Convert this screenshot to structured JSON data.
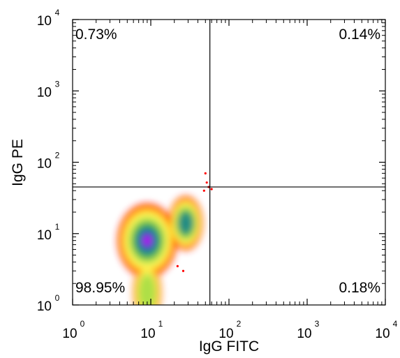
{
  "chart_data": {
    "type": "scatter",
    "subtype": "flow-cytometry density plot",
    "title": "",
    "xlabel": "IgG FITC",
    "ylabel": "IgG PE",
    "xscale": "log",
    "yscale": "log",
    "xlim": [
      1,
      10000
    ],
    "ylim": [
      1,
      10000
    ],
    "x_ticks": [
      {
        "base": "10",
        "exp": "0"
      },
      {
        "base": "10",
        "exp": "1"
      },
      {
        "base": "10",
        "exp": "2"
      },
      {
        "base": "10",
        "exp": "3"
      },
      {
        "base": "10",
        "exp": "4"
      }
    ],
    "y_ticks": [
      {
        "base": "10",
        "exp": "0"
      },
      {
        "base": "10",
        "exp": "1"
      },
      {
        "base": "10",
        "exp": "2"
      },
      {
        "base": "10",
        "exp": "3"
      },
      {
        "base": "10",
        "exp": "4"
      }
    ],
    "gates": {
      "x": 57,
      "y": 45
    },
    "quadrants": [
      {
        "position": "upper-left",
        "label": "0.73%",
        "value": 0.73
      },
      {
        "position": "upper-right",
        "label": "0.14%",
        "value": 0.14
      },
      {
        "position": "lower-left",
        "label": "98.95%",
        "value": 98.95
      },
      {
        "position": "lower-right",
        "label": "0.18%",
        "value": 0.18
      }
    ],
    "populations": [
      {
        "center_x": 9,
        "center_y": 8,
        "relative_density": 1.0
      },
      {
        "center_x": 28,
        "center_y": 14,
        "relative_density": 0.45
      },
      {
        "center_x": 9,
        "center_y": 1.5,
        "relative_density": 0.3
      }
    ],
    "colormap": [
      "#ff0000",
      "#ffcc00",
      "#ffff66",
      "#aadd44",
      "#33aa55",
      "#228888",
      "#3333cc",
      "#cc00ff"
    ],
    "grid": false,
    "legend": "none"
  }
}
